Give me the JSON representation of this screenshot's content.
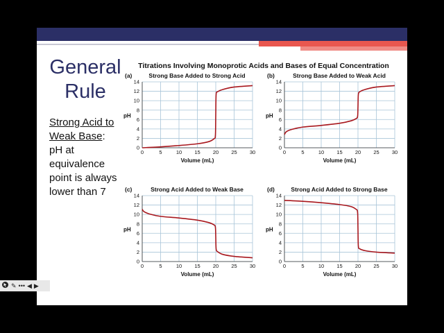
{
  "slide": {
    "title_line1": "General",
    "title_line2": "Rule",
    "subtitle_underlined": "Strong Acid to Weak Base",
    "subtitle_colon": ":",
    "subtitle_rest": "pH at equivalence point is always lower than 7",
    "chart_heading": "Titrations Involving Monoprotic Acids and Bases of Equal Concentration"
  },
  "controls": {
    "pointer_icon": "pointer-icon",
    "pen_icon": "pen-icon",
    "more_icon": "more-icon",
    "prev_icon": "prev-icon",
    "next_icon": "next-icon",
    "pen_glyph": "✎",
    "more_glyph": "•••",
    "prev_glyph": "◀",
    "next_glyph": "▶"
  },
  "colors": {
    "curve": "#a8171d",
    "navy": "#2b2f66",
    "grid": "#a8c4d8"
  },
  "chart_data": [
    {
      "type": "line",
      "panel_label": "(a)",
      "title": "Strong Base Added to Strong Acid",
      "xlabel": "Volume (mL)",
      "ylabel": "pH",
      "xlim": [
        0,
        30
      ],
      "ylim": [
        0,
        14
      ],
      "xticks": [
        0,
        5,
        10,
        15,
        20,
        25,
        30
      ],
      "yticks": [
        0,
        2,
        4,
        6,
        8,
        10,
        12,
        14
      ],
      "grid": true,
      "series": [
        {
          "x": [
            0,
            5,
            10,
            15,
            18,
            19.5,
            19.9,
            20,
            20.1,
            20.5,
            22,
            25,
            30
          ],
          "y": [
            0.0,
            0.2,
            0.48,
            0.85,
            1.28,
            1.9,
            2.6,
            7.0,
            11.3,
            11.9,
            12.4,
            12.9,
            13.2
          ]
        }
      ]
    },
    {
      "type": "line",
      "panel_label": "(b)",
      "title": "Strong Base Added to Weak Acid",
      "xlabel": "Volume (mL)",
      "ylabel": "pH",
      "xlim": [
        0,
        30
      ],
      "ylim": [
        0,
        14
      ],
      "xticks": [
        0,
        5,
        10,
        15,
        20,
        25,
        30
      ],
      "yticks": [
        0,
        2,
        4,
        6,
        8,
        10,
        12,
        14
      ],
      "grid": true,
      "series": [
        {
          "x": [
            0,
            0.5,
            2,
            5,
            10,
            15,
            18,
            19.5,
            19.9,
            20,
            20.1,
            20.5,
            22,
            25,
            30
          ],
          "y": [
            2.8,
            3.4,
            3.9,
            4.4,
            4.75,
            5.2,
            5.7,
            6.2,
            6.7,
            8.7,
            11.3,
            11.9,
            12.4,
            12.9,
            13.2
          ]
        }
      ]
    },
    {
      "type": "line",
      "panel_label": "(c)",
      "title": "Strong Acid Added to Weak Base",
      "xlabel": "Volume (mL)",
      "ylabel": "pH",
      "xlim": [
        0,
        30
      ],
      "ylim": [
        0,
        14
      ],
      "xticks": [
        0,
        5,
        10,
        15,
        20,
        25,
        30
      ],
      "yticks": [
        0,
        2,
        4,
        6,
        8,
        10,
        12,
        14
      ],
      "grid": true,
      "series": [
        {
          "x": [
            0,
            0.5,
            2,
            5,
            10,
            15,
            18,
            19.5,
            19.9,
            20,
            20.1,
            20.5,
            22,
            25,
            30
          ],
          "y": [
            11.1,
            10.6,
            10.1,
            9.6,
            9.25,
            8.8,
            8.3,
            7.8,
            7.3,
            5.3,
            2.7,
            2.1,
            1.5,
            1.1,
            0.8
          ]
        }
      ]
    },
    {
      "type": "line",
      "panel_label": "(d)",
      "title": "Strong Acid Added to Strong Base",
      "xlabel": "Volume (mL)",
      "ylabel": "pH",
      "xlim": [
        0,
        30
      ],
      "ylim": [
        0,
        14
      ],
      "xticks": [
        0,
        5,
        10,
        15,
        20,
        25,
        30
      ],
      "yticks": [
        0,
        2,
        4,
        6,
        8,
        10,
        12,
        14
      ],
      "grid": true,
      "series": [
        {
          "x": [
            0,
            5,
            10,
            15,
            18,
            19.5,
            19.9,
            20,
            20.1,
            20.5,
            22,
            25,
            30
          ],
          "y": [
            13.0,
            12.8,
            12.5,
            12.1,
            11.7,
            11.1,
            10.4,
            7.0,
            3.3,
            2.7,
            2.3,
            2.0,
            1.8
          ]
        }
      ]
    }
  ]
}
